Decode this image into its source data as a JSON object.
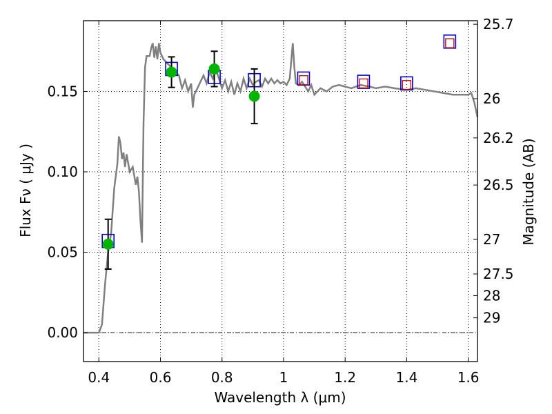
{
  "chart_data": {
    "type": "line",
    "xlabel": "Wavelength  λ (μm)",
    "ylabel": "Flux  Fν  ( μJy )",
    "ylabel_right": "Magnitude (AB)",
    "xlim": [
      0.35,
      1.63
    ],
    "ylim": [
      -0.018,
      0.194
    ],
    "x_ticks": [
      0.4,
      0.6,
      0.8,
      1.0,
      1.2,
      1.4,
      1.6
    ],
    "x_tick_labels": [
      "0.4",
      "0.6",
      "0.8",
      "1",
      "1.2",
      "1.4",
      "1.6"
    ],
    "y_ticks": [
      0.0,
      0.05,
      0.1,
      0.15
    ],
    "y_tick_labels": [
      "0.00",
      "0.05",
      "0.10",
      "0.15"
    ],
    "right_ticks": [
      {
        "label": "25.7",
        "flux": 0.1918
      },
      {
        "label": "26",
        "flux": 0.1455
      },
      {
        "label": "26.2",
        "flux": 0.1211
      },
      {
        "label": "26.5",
        "flux": 0.0918
      },
      {
        "label": "27",
        "flux": 0.058
      },
      {
        "label": "27.5",
        "flux": 0.0365
      },
      {
        "label": "28",
        "flux": 0.023
      },
      {
        "label": "29",
        "flux": 0.0092
      }
    ],
    "grid": true,
    "series": [
      {
        "kind": "model-spectrum",
        "color": "#808080",
        "points": [
          [
            0.35,
            0.0
          ],
          [
            0.4,
            0.0
          ],
          [
            0.41,
            0.005
          ],
          [
            0.42,
            0.03
          ],
          [
            0.43,
            0.05
          ],
          [
            0.44,
            0.062
          ],
          [
            0.45,
            0.09
          ],
          [
            0.46,
            0.105
          ],
          [
            0.465,
            0.122
          ],
          [
            0.47,
            0.118
          ],
          [
            0.475,
            0.108
          ],
          [
            0.48,
            0.112
          ],
          [
            0.485,
            0.103
          ],
          [
            0.49,
            0.111
          ],
          [
            0.5,
            0.1
          ],
          [
            0.51,
            0.103
          ],
          [
            0.52,
            0.092
          ],
          [
            0.525,
            0.097
          ],
          [
            0.53,
            0.088
          ],
          [
            0.535,
            0.07
          ],
          [
            0.54,
            0.056
          ],
          [
            0.545,
            0.13
          ],
          [
            0.55,
            0.165
          ],
          [
            0.555,
            0.172
          ],
          [
            0.565,
            0.172
          ],
          [
            0.57,
            0.177
          ],
          [
            0.575,
            0.18
          ],
          [
            0.58,
            0.171
          ],
          [
            0.585,
            0.178
          ],
          [
            0.59,
            0.17
          ],
          [
            0.595,
            0.18
          ],
          [
            0.6,
            0.174
          ],
          [
            0.61,
            0.17
          ],
          [
            0.62,
            0.168
          ],
          [
            0.63,
            0.166
          ],
          [
            0.64,
            0.164
          ],
          [
            0.65,
            0.162
          ],
          [
            0.66,
            0.16
          ],
          [
            0.67,
            0.152
          ],
          [
            0.68,
            0.157
          ],
          [
            0.69,
            0.15
          ],
          [
            0.7,
            0.155
          ],
          [
            0.705,
            0.14
          ],
          [
            0.71,
            0.148
          ],
          [
            0.72,
            0.152
          ],
          [
            0.73,
            0.156
          ],
          [
            0.74,
            0.16
          ],
          [
            0.75,
            0.155
          ],
          [
            0.76,
            0.162
          ],
          [
            0.77,
            0.158
          ],
          [
            0.78,
            0.164
          ],
          [
            0.79,
            0.158
          ],
          [
            0.8,
            0.152
          ],
          [
            0.81,
            0.157
          ],
          [
            0.82,
            0.15
          ],
          [
            0.83,
            0.156
          ],
          [
            0.84,
            0.148
          ],
          [
            0.85,
            0.155
          ],
          [
            0.86,
            0.15
          ],
          [
            0.87,
            0.158
          ],
          [
            0.88,
            0.152
          ],
          [
            0.89,
            0.158
          ],
          [
            0.9,
            0.154
          ],
          [
            0.91,
            0.156
          ],
          [
            0.92,
            0.157
          ],
          [
            0.93,
            0.153
          ],
          [
            0.94,
            0.158
          ],
          [
            0.95,
            0.155
          ],
          [
            0.96,
            0.158
          ],
          [
            0.97,
            0.155
          ],
          [
            0.98,
            0.157
          ],
          [
            0.99,
            0.155
          ],
          [
            1.0,
            0.156
          ],
          [
            1.01,
            0.154
          ],
          [
            1.02,
            0.158
          ],
          [
            1.03,
            0.18
          ],
          [
            1.035,
            0.165
          ],
          [
            1.04,
            0.155
          ],
          [
            1.05,
            0.154
          ],
          [
            1.06,
            0.156
          ],
          [
            1.07,
            0.153
          ],
          [
            1.08,
            0.15
          ],
          [
            1.09,
            0.154
          ],
          [
            1.1,
            0.148
          ],
          [
            1.12,
            0.152
          ],
          [
            1.14,
            0.15
          ],
          [
            1.16,
            0.153
          ],
          [
            1.18,
            0.154
          ],
          [
            1.2,
            0.153
          ],
          [
            1.22,
            0.152
          ],
          [
            1.25,
            0.154
          ],
          [
            1.28,
            0.153
          ],
          [
            1.3,
            0.152
          ],
          [
            1.33,
            0.153
          ],
          [
            1.36,
            0.152
          ],
          [
            1.4,
            0.151
          ],
          [
            1.43,
            0.152
          ],
          [
            1.46,
            0.151
          ],
          [
            1.49,
            0.15
          ],
          [
            1.52,
            0.149
          ],
          [
            1.55,
            0.148
          ],
          [
            1.58,
            0.148
          ],
          [
            1.6,
            0.148
          ],
          [
            1.61,
            0.149
          ],
          [
            1.62,
            0.143
          ],
          [
            1.63,
            0.134
          ]
        ]
      },
      {
        "kind": "model-photometry",
        "marker": "open-square",
        "color": "#0000cc",
        "points": [
          [
            0.43,
            0.057
          ],
          [
            0.636,
            0.164
          ],
          [
            0.775,
            0.159
          ],
          [
            0.905,
            0.157
          ],
          [
            1.065,
            0.158
          ],
          [
            1.26,
            0.156
          ],
          [
            1.4,
            0.155
          ],
          [
            1.54,
            0.181
          ]
        ]
      },
      {
        "kind": "observed-upper",
        "marker": "open-square",
        "color": "#cc0000",
        "points": [
          [
            1.065,
            0.157
          ],
          [
            1.26,
            0.155
          ],
          [
            1.4,
            0.154
          ],
          [
            1.54,
            0.18
          ]
        ]
      },
      {
        "kind": "observed",
        "marker": "circle",
        "color": "#00b400",
        "points": [
          {
            "x": 0.43,
            "y": 0.055,
            "err": 0.0155
          },
          {
            "x": 0.636,
            "y": 0.162,
            "err": 0.0095
          },
          {
            "x": 0.775,
            "y": 0.164,
            "err": 0.011
          },
          {
            "x": 0.905,
            "y": 0.147,
            "err": 0.017
          }
        ]
      }
    ]
  }
}
